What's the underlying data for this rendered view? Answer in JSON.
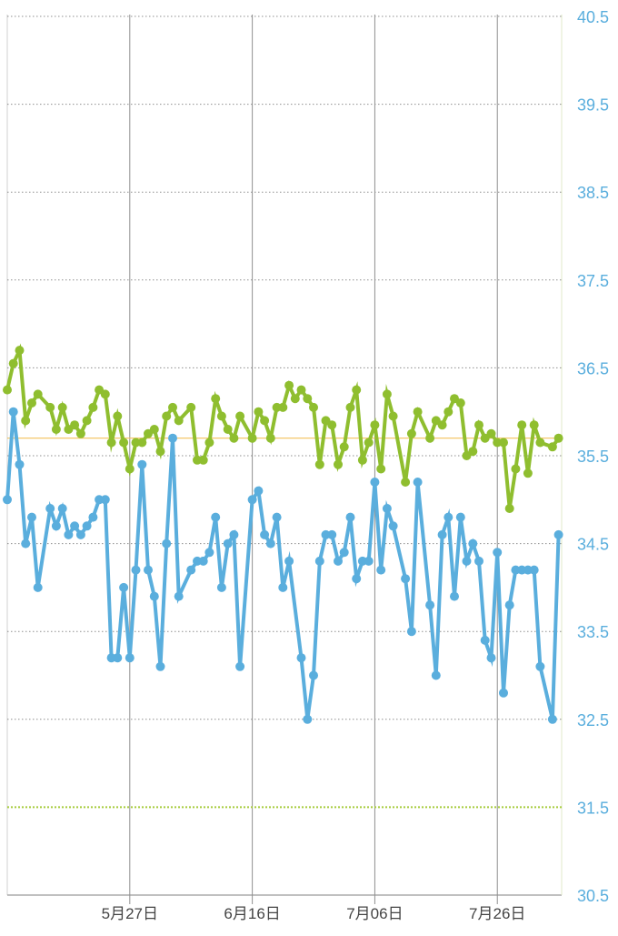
{
  "chart_data": {
    "type": "line",
    "title": "",
    "xlabel": "",
    "ylabel": "",
    "ylim": [
      30.5,
      40.5
    ],
    "y_ticks": [
      "40.5",
      "39.5",
      "38.5",
      "37.5",
      "36.5",
      "35.5",
      "34.5",
      "33.5",
      "32.5",
      "31.5",
      "30.5"
    ],
    "x_ticks": [
      {
        "label": "5月27日",
        "x": 20
      },
      {
        "label": "6月16日",
        "x": 40
      },
      {
        "label": "7月06日",
        "x": 60
      },
      {
        "label": "7月26日",
        "x": 80
      }
    ],
    "xlim": [
      0,
      90.5
    ],
    "reference_lines": [
      {
        "y": 35.7,
        "color": "#f2c15a",
        "style": "solid"
      },
      {
        "y": 31.5,
        "color": "#a6cc3c",
        "style": "dotted"
      }
    ],
    "colors": {
      "green": "#8fbe2f",
      "blue": "#5aaedd",
      "axis_label": "#5aaedd",
      "x_label": "#444444",
      "grid": "#8f8f8f"
    },
    "series": [
      {
        "color": "#8fbe2f",
        "values": [
          [
            0,
            36.25
          ],
          [
            1,
            36.55
          ],
          [
            2,
            36.7
          ],
          [
            3,
            35.9
          ],
          [
            4,
            36.1
          ],
          [
            5,
            36.2
          ],
          [
            7,
            36.05
          ],
          [
            8,
            35.8
          ],
          [
            9,
            36.05
          ],
          [
            10,
            35.8
          ],
          [
            11,
            35.85
          ],
          [
            12,
            35.75
          ],
          [
            13,
            35.9
          ],
          [
            14,
            36.05
          ],
          [
            15,
            36.25
          ],
          [
            16,
            36.2
          ],
          [
            17,
            35.65
          ],
          [
            18,
            35.95
          ],
          [
            19,
            35.65
          ],
          [
            20,
            35.35
          ],
          [
            21,
            35.65
          ],
          [
            22,
            35.65
          ],
          [
            23,
            35.75
          ],
          [
            24,
            35.8
          ],
          [
            25,
            35.55
          ],
          [
            26,
            35.95
          ],
          [
            27,
            36.05
          ],
          [
            28,
            35.9
          ],
          [
            30,
            36.05
          ],
          [
            31,
            35.45
          ],
          [
            32,
            35.45
          ],
          [
            33,
            35.65
          ],
          [
            34,
            36.15
          ],
          [
            35,
            35.95
          ],
          [
            36,
            35.8
          ],
          [
            37,
            35.7
          ],
          [
            38,
            35.95
          ],
          [
            40,
            35.7
          ],
          [
            41,
            36.0
          ],
          [
            42,
            35.9
          ],
          [
            43,
            35.7
          ],
          [
            44,
            36.05
          ],
          [
            45,
            36.05
          ],
          [
            46,
            36.3
          ],
          [
            47,
            36.15
          ],
          [
            48,
            36.25
          ],
          [
            49,
            36.15
          ],
          [
            50,
            36.05
          ],
          [
            51,
            35.4
          ],
          [
            52,
            35.9
          ],
          [
            53,
            35.85
          ],
          [
            54,
            35.4
          ],
          [
            55,
            35.6
          ],
          [
            56,
            36.05
          ],
          [
            57,
            36.25
          ],
          [
            58,
            35.45
          ],
          [
            59,
            35.65
          ],
          [
            60,
            35.85
          ],
          [
            61,
            35.35
          ],
          [
            62,
            36.2
          ],
          [
            63,
            35.95
          ],
          [
            65,
            35.2
          ],
          [
            66,
            35.75
          ],
          [
            67,
            36.0
          ],
          [
            69,
            35.7
          ],
          [
            70,
            35.9
          ],
          [
            71,
            35.85
          ],
          [
            72,
            36.0
          ],
          [
            73,
            36.15
          ],
          [
            74,
            36.1
          ],
          [
            75,
            35.5
          ],
          [
            76,
            35.55
          ],
          [
            77,
            35.85
          ],
          [
            78,
            35.7
          ],
          [
            79,
            35.75
          ],
          [
            80,
            35.65
          ],
          [
            81,
            35.65
          ],
          [
            82,
            34.9
          ],
          [
            83,
            35.35
          ],
          [
            84,
            35.85
          ],
          [
            85,
            35.3
          ],
          [
            86,
            35.85
          ],
          [
            87,
            35.65
          ],
          [
            89,
            35.6
          ],
          [
            90,
            35.7
          ]
        ]
      },
      {
        "color": "#5aaedd",
        "values": [
          [
            0,
            35.0
          ],
          [
            1,
            36.0
          ],
          [
            2,
            35.4
          ],
          [
            3,
            34.5
          ],
          [
            4,
            34.8
          ],
          [
            5,
            34.0
          ],
          [
            7,
            34.9
          ],
          [
            8,
            34.7
          ],
          [
            9,
            34.9
          ],
          [
            10,
            34.6
          ],
          [
            11,
            34.7
          ],
          [
            12,
            34.6
          ],
          [
            13,
            34.7
          ],
          [
            14,
            34.8
          ],
          [
            15,
            35.0
          ],
          [
            16,
            35.0
          ],
          [
            17,
            33.2
          ],
          [
            18,
            33.2
          ],
          [
            19,
            34.0
          ],
          [
            20,
            33.2
          ],
          [
            21,
            34.2
          ],
          [
            22,
            35.4
          ],
          [
            23,
            34.2
          ],
          [
            24,
            33.9
          ],
          [
            25,
            33.1
          ],
          [
            26,
            34.5
          ],
          [
            27,
            35.7
          ],
          [
            28,
            33.9
          ],
          [
            30,
            34.2
          ],
          [
            31,
            34.3
          ],
          [
            32,
            34.3
          ],
          [
            33,
            34.4
          ],
          [
            34,
            34.8
          ],
          [
            35,
            34.0
          ],
          [
            36,
            34.5
          ],
          [
            37,
            34.6
          ],
          [
            38,
            33.1
          ],
          [
            40,
            35.0
          ],
          [
            41,
            35.1
          ],
          [
            42,
            34.6
          ],
          [
            43,
            34.5
          ],
          [
            44,
            34.8
          ],
          [
            45,
            34.0
          ],
          [
            46,
            34.3
          ],
          [
            48,
            33.2
          ],
          [
            49,
            32.5
          ],
          [
            50,
            33.0
          ],
          [
            51,
            34.3
          ],
          [
            52,
            34.6
          ],
          [
            53,
            34.6
          ],
          [
            54,
            34.3
          ],
          [
            55,
            34.4
          ],
          [
            56,
            34.8
          ],
          [
            57,
            34.1
          ],
          [
            58,
            34.3
          ],
          [
            59,
            34.3
          ],
          [
            60,
            35.2
          ],
          [
            61,
            34.2
          ],
          [
            62,
            34.9
          ],
          [
            63,
            34.7
          ],
          [
            65,
            34.1
          ],
          [
            66,
            33.5
          ],
          [
            67,
            35.2
          ],
          [
            69,
            33.8
          ],
          [
            70,
            33.0
          ],
          [
            71,
            34.6
          ],
          [
            72,
            34.8
          ],
          [
            73,
            33.9
          ],
          [
            74,
            34.8
          ],
          [
            75,
            34.3
          ],
          [
            76,
            34.5
          ],
          [
            77,
            34.3
          ],
          [
            78,
            33.4
          ],
          [
            79,
            33.2
          ],
          [
            80,
            34.4
          ],
          [
            81,
            32.8
          ],
          [
            82,
            33.8
          ],
          [
            83,
            34.2
          ],
          [
            84,
            34.2
          ],
          [
            85,
            34.2
          ],
          [
            86,
            34.2
          ],
          [
            87,
            33.1
          ],
          [
            89,
            32.5
          ],
          [
            90,
            34.6
          ]
        ]
      }
    ]
  }
}
